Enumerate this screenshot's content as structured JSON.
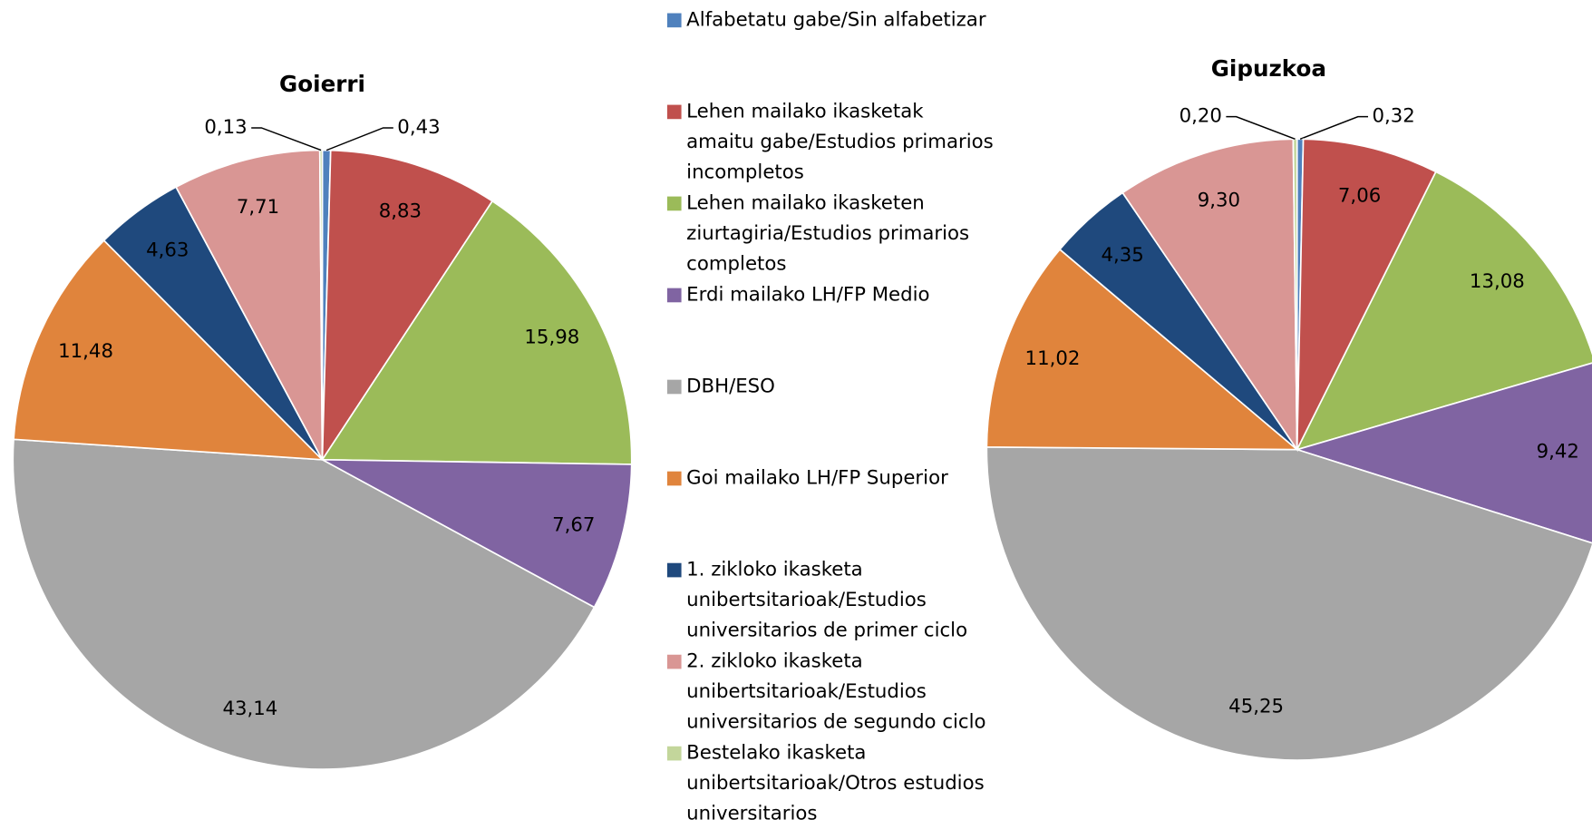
{
  "chart_data": [
    {
      "type": "pie",
      "title": "Goierri",
      "categories": [
        "Alfabetatu gabe/Sin alfabetizar",
        "Lehen mailako ikasketak amaitu gabe/Estudios primarios incompletos",
        "Lehen mailako ikasketen ziurtagiria/Estudios primarios completos",
        "Erdi mailako LH/FP Medio",
        "DBH/ESO",
        "Goi mailako LH/FP Superior",
        "1. zikloko ikasketa unibertsitarioak/Estudios universitarios de primer ciclo",
        "2. zikloko ikasketa unibertsitarioak/Estudios universitarios de segundo ciclo",
        "Bestelako ikasketa unibertsitarioak/Otros estudios universitarios"
      ],
      "values": [
        0.43,
        8.83,
        15.98,
        7.67,
        43.14,
        11.48,
        4.63,
        7.71,
        0.13
      ],
      "value_labels": [
        "0,43",
        "8,83",
        "15,98",
        "7,67",
        "43,14",
        "11,48",
        "4,63",
        "7,71",
        "0,13"
      ],
      "colors": [
        "#4f81bd",
        "#c0504d",
        "#9bbb59",
        "#8064a2",
        "#a6a6a6",
        "#e0843c",
        "#1f497d",
        "#d99694",
        "#c3d69b"
      ],
      "legend": "center"
    },
    {
      "type": "pie",
      "title": "Gipuzkoa",
      "values": [
        0.32,
        7.06,
        13.08,
        9.42,
        45.25,
        11.02,
        4.35,
        9.3,
        0.2
      ],
      "value_labels": [
        "0,32",
        "7,06",
        "13,08",
        "9,42",
        "45,25",
        "11,02",
        "4,35",
        "9,30",
        "0,20"
      ]
    }
  ]
}
